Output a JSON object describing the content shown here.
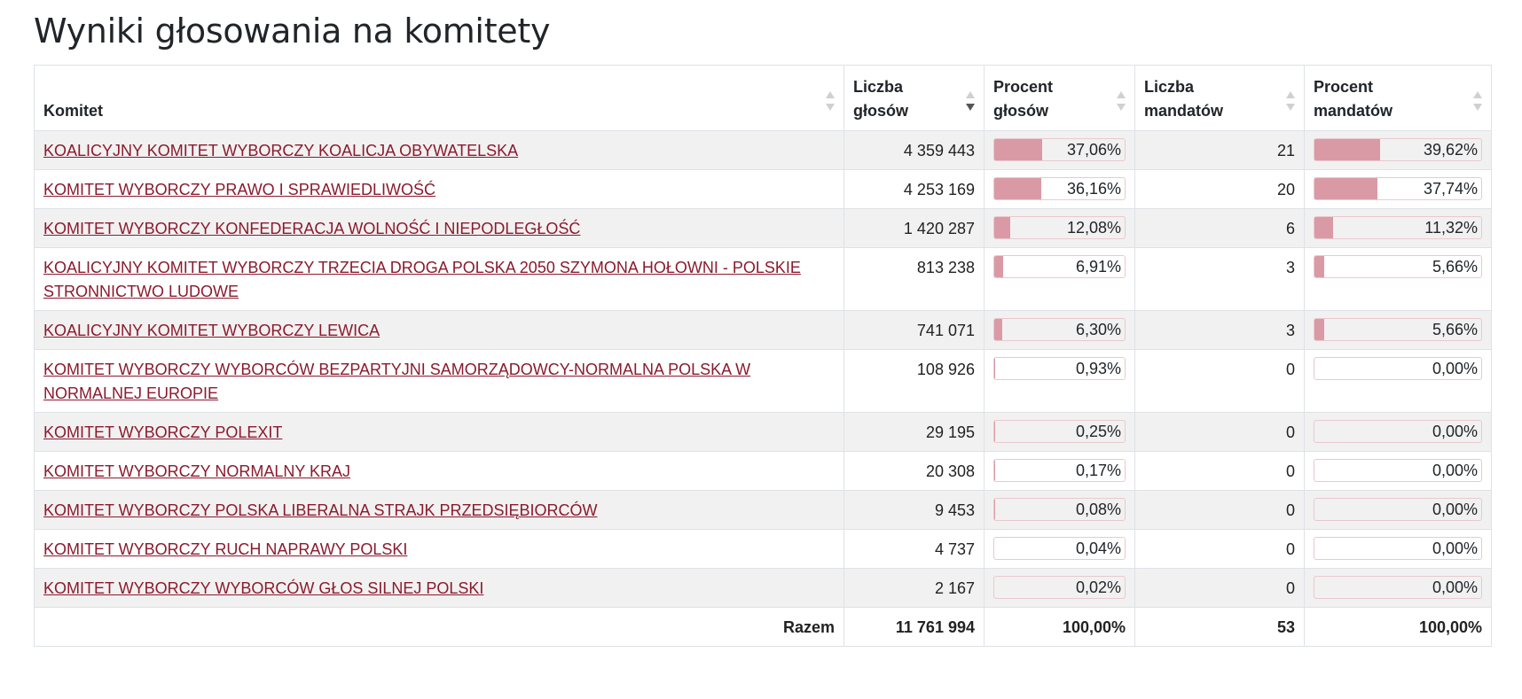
{
  "title": "Wyniki głosowania na komitety",
  "colors": {
    "bar_fill": "#d99aa6",
    "link": "#8b1a2e",
    "stripe": "#f1f1f1"
  },
  "headers": {
    "committee": "Komitet",
    "votes_l1": "Liczba",
    "votes_l2": "głosów",
    "vote_pct_l1": "Procent",
    "vote_pct_l2": "głosów",
    "seats_l1": "Liczba",
    "seats_l2": "mandatów",
    "seat_pct_l1": "Procent",
    "seat_pct_l2": "mandatów"
  },
  "sort_icons": [
    "sort-icon",
    "sort-descending-icon"
  ],
  "rows": [
    {
      "name": "KOALICYJNY KOMITET WYBORCZY KOALICJA OBYWATELSKA",
      "votes": "4 359 443",
      "vote_pct": "37,06%",
      "vote_frac": 0.3706,
      "seats": "21",
      "seat_pct": "39,62%",
      "seat_frac": 0.3962
    },
    {
      "name": "KOMITET WYBORCZY PRAWO I SPRAWIEDLIWOŚĆ",
      "votes": "4 253 169",
      "vote_pct": "36,16%",
      "vote_frac": 0.3616,
      "seats": "20",
      "seat_pct": "37,74%",
      "seat_frac": 0.3774
    },
    {
      "name": "KOMITET WYBORCZY KONFEDERACJA WOLNOŚĆ I NIEPODLEGŁOŚĆ",
      "votes": "1 420 287",
      "vote_pct": "12,08%",
      "vote_frac": 0.1208,
      "seats": "6",
      "seat_pct": "11,32%",
      "seat_frac": 0.1132
    },
    {
      "name": "KOALICYJNY KOMITET WYBORCZY TRZECIA DROGA POLSKA 2050 SZYMONA HOŁOWNI - POLSKIE STRONNICTWO LUDOWE",
      "votes": "813 238",
      "vote_pct": "6,91%",
      "vote_frac": 0.0691,
      "seats": "3",
      "seat_pct": "5,66%",
      "seat_frac": 0.0566
    },
    {
      "name": "KOALICYJNY KOMITET WYBORCZY LEWICA",
      "votes": "741 071",
      "vote_pct": "6,30%",
      "vote_frac": 0.063,
      "seats": "3",
      "seat_pct": "5,66%",
      "seat_frac": 0.0566
    },
    {
      "name": "KOMITET WYBORCZY WYBORCÓW BEZPARTYJNI SAMORZĄDOWCY-NORMALNA POLSKA W NORMALNEJ EUROPIE",
      "votes": "108 926",
      "vote_pct": "0,93%",
      "vote_frac": 0.0093,
      "seats": "0",
      "seat_pct": "0,00%",
      "seat_frac": 0
    },
    {
      "name": "KOMITET WYBORCZY POLEXIT",
      "votes": "29 195",
      "vote_pct": "0,25%",
      "vote_frac": 0.0025,
      "seats": "0",
      "seat_pct": "0,00%",
      "seat_frac": 0
    },
    {
      "name": "KOMITET WYBORCZY NORMALNY KRAJ",
      "votes": "20 308",
      "vote_pct": "0,17%",
      "vote_frac": 0.0017,
      "seats": "0",
      "seat_pct": "0,00%",
      "seat_frac": 0
    },
    {
      "name": "KOMITET WYBORCZY POLSKA LIBERALNA STRAJK PRZEDSIĘBIORCÓW",
      "votes": "9 453",
      "vote_pct": "0,08%",
      "vote_frac": 0.0008,
      "seats": "0",
      "seat_pct": "0,00%",
      "seat_frac": 0
    },
    {
      "name": "KOMITET WYBORCZY RUCH NAPRAWY POLSKI",
      "votes": "4 737",
      "vote_pct": "0,04%",
      "vote_frac": 0.0004,
      "seats": "0",
      "seat_pct": "0,00%",
      "seat_frac": 0
    },
    {
      "name": "KOMITET WYBORCZY WYBORCÓW GŁOS SILNEJ POLSKI",
      "votes": "2 167",
      "vote_pct": "0,02%",
      "vote_frac": 0.0002,
      "seats": "0",
      "seat_pct": "0,00%",
      "seat_frac": 0
    }
  ],
  "totals": {
    "label": "Razem",
    "votes": "11 761 994",
    "vote_pct": "100,00%",
    "seats": "53",
    "seat_pct": "100,00%"
  }
}
